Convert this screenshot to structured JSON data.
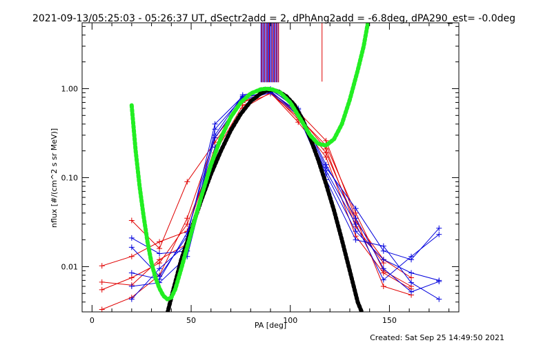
{
  "chart_data": {
    "type": "line",
    "title": "2021-09-13/05:25:03 - 05:26:37 UT, dSectr2add = 2, dPhAng2add = -6.8deg, dPA290_est= -0.0deg",
    "xlabel": "PA [deg]",
    "ylabel": "nflux [#/(cm^2 s sr MeV)]",
    "xlim": [
      -5,
      185
    ],
    "ylim": [
      0.0031,
      5.5
    ],
    "y_scale": "log",
    "x_ticks": [
      0,
      50,
      100,
      150
    ],
    "x_tick_labels": [
      "0",
      "50",
      "100",
      "150"
    ],
    "y_ticks": [
      0.01,
      0.1,
      1.0
    ],
    "y_tick_labels": [
      "0.01",
      "0.10",
      "1.00"
    ],
    "footer": "Created: Sat Sep 25 14:49:50 2021",
    "colors": {
      "red": "#e00000",
      "blue": "#0000dd",
      "black": "#000000",
      "green": "#22ee22"
    },
    "series": [
      {
        "color": "red",
        "style": "lines-plus",
        "values": [
          [
            5,
            0.0102
          ],
          [
            20,
            0.013
          ],
          [
            34,
            0.019
          ],
          [
            48,
            0.025
          ],
          [
            62,
            0.22
          ],
          [
            76,
            0.78
          ],
          [
            90,
            0.93
          ],
          [
            104,
            0.45
          ],
          [
            118,
            0.19
          ],
          [
            133,
            0.032
          ],
          [
            147,
            0.012
          ],
          [
            161,
            0.0075
          ]
        ]
      },
      {
        "color": "red",
        "style": "lines-plus",
        "values": [
          [
            5,
            0.0055
          ],
          [
            20,
            0.0075
          ],
          [
            34,
            0.011
          ],
          [
            48,
            0.03
          ],
          [
            62,
            0.19
          ],
          [
            76,
            0.65
          ],
          [
            90,
            0.88
          ],
          [
            104,
            0.48
          ],
          [
            118,
            0.23
          ],
          [
            133,
            0.04
          ],
          [
            147,
            0.009
          ],
          [
            161,
            0.006
          ]
        ]
      },
      {
        "color": "red",
        "style": "lines-plus",
        "values": [
          [
            5,
            0.0033
          ],
          [
            20,
            0.0045
          ],
          [
            34,
            0.008
          ],
          [
            48,
            0.035
          ],
          [
            62,
            0.28
          ],
          [
            76,
            0.72
          ],
          [
            90,
            0.91
          ],
          [
            104,
            0.55
          ],
          [
            118,
            0.26
          ],
          [
            133,
            0.035
          ],
          [
            147,
            0.006
          ],
          [
            161,
            0.0048
          ]
        ]
      },
      {
        "color": "red",
        "style": "lines-plus",
        "values": [
          [
            20,
            0.033
          ],
          [
            34,
            0.016
          ],
          [
            48,
            0.09
          ],
          [
            62,
            0.25
          ],
          [
            76,
            0.7
          ],
          [
            90,
            0.95
          ],
          [
            104,
            0.5
          ],
          [
            118,
            0.21
          ],
          [
            133,
            0.028
          ],
          [
            147,
            0.011
          ]
        ]
      },
      {
        "color": "red",
        "style": "lines-plus",
        "values": [
          [
            5,
            0.0067
          ],
          [
            20,
            0.0062
          ],
          [
            34,
            0.012
          ],
          [
            48,
            0.018
          ],
          [
            62,
            0.16
          ],
          [
            76,
            0.6
          ],
          [
            90,
            0.9
          ],
          [
            104,
            0.42
          ],
          [
            118,
            0.17
          ],
          [
            133,
            0.022
          ],
          [
            147,
            0.0085
          ],
          [
            161,
            0.0056
          ]
        ]
      },
      {
        "color": "blue",
        "style": "lines-plus",
        "values": [
          [
            20,
            0.021
          ],
          [
            34,
            0.014
          ],
          [
            48,
            0.015
          ],
          [
            62,
            0.35
          ],
          [
            76,
            0.8
          ],
          [
            90,
            0.92
          ],
          [
            104,
            0.55
          ],
          [
            118,
            0.13
          ],
          [
            133,
            0.045
          ],
          [
            147,
            0.015
          ],
          [
            161,
            0.012
          ],
          [
            175,
            0.027
          ]
        ]
      },
      {
        "color": "blue",
        "style": "lines-plus",
        "values": [
          [
            20,
            0.0085
          ],
          [
            34,
            0.0072
          ],
          [
            48,
            0.024
          ],
          [
            62,
            0.3
          ],
          [
            76,
            0.85
          ],
          [
            90,
            0.97
          ],
          [
            104,
            0.6
          ],
          [
            118,
            0.11
          ],
          [
            133,
            0.025
          ],
          [
            147,
            0.012
          ],
          [
            161,
            0.0085
          ],
          [
            175,
            0.007
          ]
        ]
      },
      {
        "color": "blue",
        "style": "lines-plus",
        "values": [
          [
            20,
            0.006
          ],
          [
            34,
            0.0066
          ],
          [
            48,
            0.013
          ],
          [
            62,
            0.22
          ],
          [
            76,
            0.75
          ],
          [
            90,
            0.9
          ],
          [
            104,
            0.5
          ],
          [
            118,
            0.095
          ],
          [
            133,
            0.02
          ],
          [
            147,
            0.017
          ],
          [
            161,
            0.0066
          ],
          [
            175,
            0.0043
          ]
        ]
      },
      {
        "color": "blue",
        "style": "lines-plus",
        "values": [
          [
            20,
            0.0043
          ],
          [
            34,
            0.0095
          ],
          [
            48,
            0.018
          ],
          [
            62,
            0.28
          ],
          [
            76,
            0.78
          ],
          [
            90,
            0.94
          ],
          [
            104,
            0.52
          ],
          [
            118,
            0.12
          ],
          [
            133,
            0.03
          ],
          [
            147,
            0.0071
          ],
          [
            161,
            0.013
          ],
          [
            175,
            0.023
          ]
        ]
      },
      {
        "color": "blue",
        "style": "lines-plus",
        "values": [
          [
            20,
            0.0165
          ],
          [
            34,
            0.0078
          ],
          [
            48,
            0.022
          ],
          [
            62,
            0.4
          ],
          [
            76,
            0.82
          ],
          [
            90,
            0.99
          ],
          [
            104,
            0.58
          ],
          [
            118,
            0.14
          ],
          [
            133,
            0.035
          ],
          [
            147,
            0.0095
          ],
          [
            161,
            0.0052
          ],
          [
            175,
            0.0068
          ]
        ]
      },
      {
        "color": "black",
        "style": "dots",
        "values": [
          [
            38,
            0.003
          ],
          [
            41,
            0.0055
          ],
          [
            45,
            0.012
          ],
          [
            50,
            0.026
          ],
          [
            55,
            0.055
          ],
          [
            60,
            0.11
          ],
          [
            65,
            0.2
          ],
          [
            70,
            0.34
          ],
          [
            75,
            0.52
          ],
          [
            80,
            0.72
          ],
          [
            85,
            0.88
          ],
          [
            88,
            0.95
          ],
          [
            91,
            0.97
          ],
          [
            94,
            0.93
          ],
          [
            98,
            0.82
          ],
          [
            102,
            0.66
          ],
          [
            106,
            0.46
          ],
          [
            110,
            0.28
          ],
          [
            114,
            0.16
          ],
          [
            118,
            0.085
          ],
          [
            122,
            0.043
          ],
          [
            126,
            0.02
          ],
          [
            130,
            0.009
          ],
          [
            134,
            0.004
          ],
          [
            136,
            0.0031
          ]
        ]
      },
      {
        "color": "green",
        "style": "dots",
        "values": [
          [
            20,
            0.65
          ],
          [
            22,
            0.2
          ],
          [
            24,
            0.08
          ],
          [
            26,
            0.037
          ],
          [
            28,
            0.019
          ],
          [
            30,
            0.011
          ],
          [
            32,
            0.0075
          ],
          [
            34,
            0.0057
          ],
          [
            36,
            0.0047
          ],
          [
            38,
            0.0043
          ],
          [
            40,
            0.0045
          ],
          [
            42,
            0.0056
          ],
          [
            45,
            0.0095
          ],
          [
            50,
            0.024
          ],
          [
            55,
            0.06
          ],
          [
            60,
            0.14
          ],
          [
            65,
            0.28
          ],
          [
            70,
            0.48
          ],
          [
            75,
            0.7
          ],
          [
            80,
            0.88
          ],
          [
            85,
            0.98
          ],
          [
            88,
            1.0
          ],
          [
            91,
            0.98
          ],
          [
            95,
            0.9
          ],
          [
            100,
            0.7
          ],
          [
            105,
            0.46
          ],
          [
            110,
            0.3
          ],
          [
            114,
            0.24
          ],
          [
            118,
            0.23
          ],
          [
            122,
            0.27
          ],
          [
            126,
            0.4
          ],
          [
            130,
            0.75
          ],
          [
            134,
            1.6
          ],
          [
            137,
            3.0
          ],
          [
            139,
            5.3
          ]
        ]
      }
    ],
    "vertical_markers": [
      {
        "color": "blue",
        "x": [
          85.2,
          85.8,
          86.4,
          87.0,
          87.5,
          88.1,
          88.7,
          89.2,
          89.8,
          90.4,
          91.0,
          91.6,
          92.2,
          92.8,
          93.4,
          94.0
        ],
        "y_from": 1.18,
        "y_to": 5.5
      },
      {
        "color": "red",
        "x": [
          85.6,
          86.9,
          88.3,
          89.5,
          90.8,
          92.0,
          93.2,
          94.1
        ],
        "y_from": 1.18,
        "y_to": 5.5
      },
      {
        "color": "red",
        "x": [
          116
        ],
        "y_from": 1.2,
        "y_to": 5.5
      }
    ]
  }
}
